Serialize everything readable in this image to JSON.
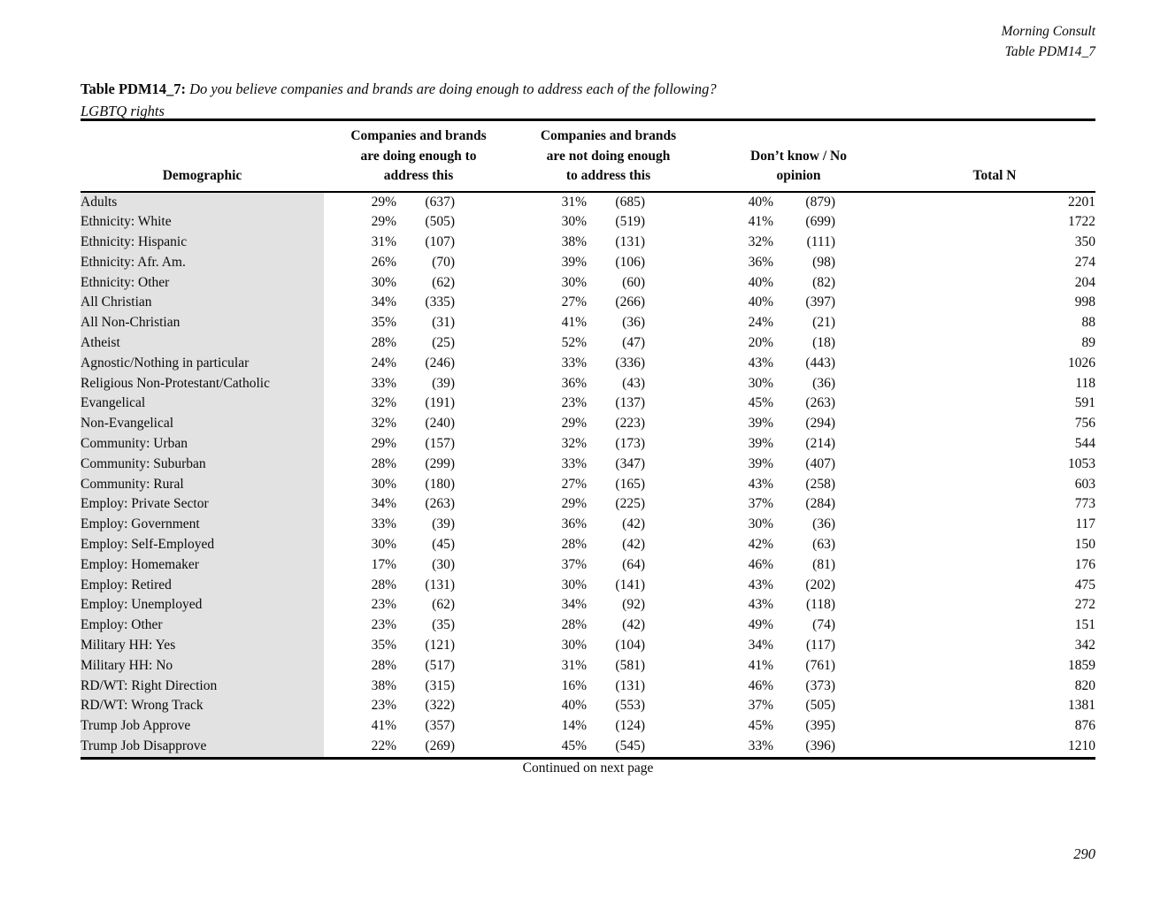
{
  "doc_header": {
    "source": "Morning Consult",
    "table_ref": "Table PDM14_7"
  },
  "title": {
    "label": "Table PDM14_7:",
    "question": "Do you believe companies and brands are doing enough to address each of the following?",
    "subject": "LGBTQ rights"
  },
  "table": {
    "col_demographic": "Demographic",
    "col_group1": [
      "Companies and brands",
      "are doing enough to",
      "address this"
    ],
    "col_group2": [
      "Companies and brands",
      "are not doing enough",
      "to address this"
    ],
    "col_group3": [
      "Don’t know / No",
      "opinion"
    ],
    "col_total": "Total N",
    "rows": [
      [
        "Adults",
        "29%",
        "(637)",
        "31%",
        "(685)",
        "40%",
        "(879)",
        "2201"
      ],
      [
        "Ethnicity: White",
        "29%",
        "(505)",
        "30%",
        "(519)",
        "41%",
        "(699)",
        "1722"
      ],
      [
        "Ethnicity: Hispanic",
        "31%",
        "(107)",
        "38%",
        "(131)",
        "32%",
        "(111)",
        "350"
      ],
      [
        "Ethnicity: Afr. Am.",
        "26%",
        "(70)",
        "39%",
        "(106)",
        "36%",
        "(98)",
        "274"
      ],
      [
        "Ethnicity: Other",
        "30%",
        "(62)",
        "30%",
        "(60)",
        "40%",
        "(82)",
        "204"
      ],
      [
        "All Christian",
        "34%",
        "(335)",
        "27%",
        "(266)",
        "40%",
        "(397)",
        "998"
      ],
      [
        "All Non-Christian",
        "35%",
        "(31)",
        "41%",
        "(36)",
        "24%",
        "(21)",
        "88"
      ],
      [
        "Atheist",
        "28%",
        "(25)",
        "52%",
        "(47)",
        "20%",
        "(18)",
        "89"
      ],
      [
        "Agnostic/Nothing in particular",
        "24%",
        "(246)",
        "33%",
        "(336)",
        "43%",
        "(443)",
        "1026"
      ],
      [
        "Religious Non-Protestant/Catholic",
        "33%",
        "(39)",
        "36%",
        "(43)",
        "30%",
        "(36)",
        "118"
      ],
      [
        "Evangelical",
        "32%",
        "(191)",
        "23%",
        "(137)",
        "45%",
        "(263)",
        "591"
      ],
      [
        "Non-Evangelical",
        "32%",
        "(240)",
        "29%",
        "(223)",
        "39%",
        "(294)",
        "756"
      ],
      [
        "Community: Urban",
        "29%",
        "(157)",
        "32%",
        "(173)",
        "39%",
        "(214)",
        "544"
      ],
      [
        "Community: Suburban",
        "28%",
        "(299)",
        "33%",
        "(347)",
        "39%",
        "(407)",
        "1053"
      ],
      [
        "Community: Rural",
        "30%",
        "(180)",
        "27%",
        "(165)",
        "43%",
        "(258)",
        "603"
      ],
      [
        "Employ: Private Sector",
        "34%",
        "(263)",
        "29%",
        "(225)",
        "37%",
        "(284)",
        "773"
      ],
      [
        "Employ: Government",
        "33%",
        "(39)",
        "36%",
        "(42)",
        "30%",
        "(36)",
        "117"
      ],
      [
        "Employ: Self-Employed",
        "30%",
        "(45)",
        "28%",
        "(42)",
        "42%",
        "(63)",
        "150"
      ],
      [
        "Employ: Homemaker",
        "17%",
        "(30)",
        "37%",
        "(64)",
        "46%",
        "(81)",
        "176"
      ],
      [
        "Employ: Retired",
        "28%",
        "(131)",
        "30%",
        "(141)",
        "43%",
        "(202)",
        "475"
      ],
      [
        "Employ: Unemployed",
        "23%",
        "(62)",
        "34%",
        "(92)",
        "43%",
        "(118)",
        "272"
      ],
      [
        "Employ: Other",
        "23%",
        "(35)",
        "28%",
        "(42)",
        "49%",
        "(74)",
        "151"
      ],
      [
        "Military HH: Yes",
        "35%",
        "(121)",
        "30%",
        "(104)",
        "34%",
        "(117)",
        "342"
      ],
      [
        "Military HH: No",
        "28%",
        "(517)",
        "31%",
        "(581)",
        "41%",
        "(761)",
        "1859"
      ],
      [
        "RD/WT: Right Direction",
        "38%",
        "(315)",
        "16%",
        "(131)",
        "46%",
        "(373)",
        "820"
      ],
      [
        "RD/WT: Wrong Track",
        "23%",
        "(322)",
        "40%",
        "(553)",
        "37%",
        "(505)",
        "1381"
      ],
      [
        "Trump Job Approve",
        "41%",
        "(357)",
        "14%",
        "(124)",
        "45%",
        "(395)",
        "876"
      ],
      [
        "Trump Job Disapprove",
        "22%",
        "(269)",
        "45%",
        "(545)",
        "33%",
        "(396)",
        "1210"
      ]
    ]
  },
  "footer": {
    "continued": "Continued on next page",
    "page_number": "290"
  },
  "colors": {
    "row_label_shade": "#e2e2e2",
    "rule": "#000000"
  }
}
